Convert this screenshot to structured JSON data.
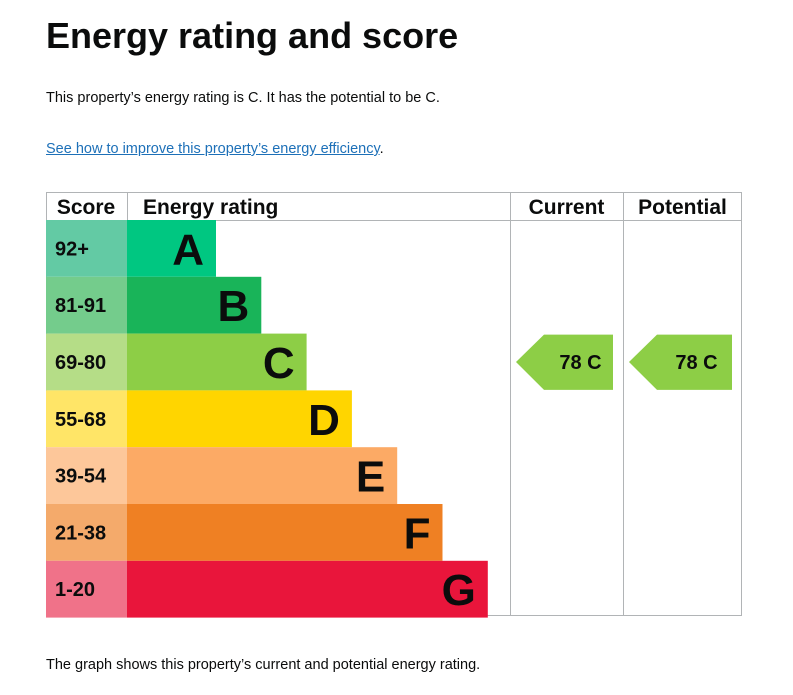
{
  "page": {
    "title": "Energy rating and score",
    "summary": "This property’s energy rating is C. It has the potential to be C.",
    "link_text": "See how to improve this property’s energy efficiency",
    "link_suffix": ".",
    "footnote": "The graph shows this property’s current and potential energy rating."
  },
  "chart_data": {
    "type": "table",
    "headers": {
      "score": "Score",
      "rating": "Energy rating",
      "current": "Current",
      "potential": "Potential"
    },
    "bands": [
      {
        "letter": "A",
        "range": "92+",
        "bar_color": "#00c781",
        "score_color": "#63caa4"
      },
      {
        "letter": "B",
        "range": "81-91",
        "bar_color": "#19b459",
        "score_color": "#74cc8c"
      },
      {
        "letter": "C",
        "range": "69-80",
        "bar_color": "#8dce46",
        "score_color": "#b5dd87"
      },
      {
        "letter": "D",
        "range": "55-68",
        "bar_color": "#ffd500",
        "score_color": "#ffe567"
      },
      {
        "letter": "E",
        "range": "39-54",
        "bar_color": "#fcaa65",
        "score_color": "#fdc79a"
      },
      {
        "letter": "F",
        "range": "21-38",
        "bar_color": "#ef8023",
        "score_color": "#f4aa6b"
      },
      {
        "letter": "G",
        "range": "1-20",
        "bar_color": "#e9153b",
        "score_color": "#f07289"
      }
    ],
    "current": {
      "score": 78,
      "rating": "C",
      "label": "78  C",
      "color": "#8dce46"
    },
    "potential": {
      "score": 78,
      "rating": "C",
      "label": "78  C",
      "color": "#8dce46"
    }
  }
}
